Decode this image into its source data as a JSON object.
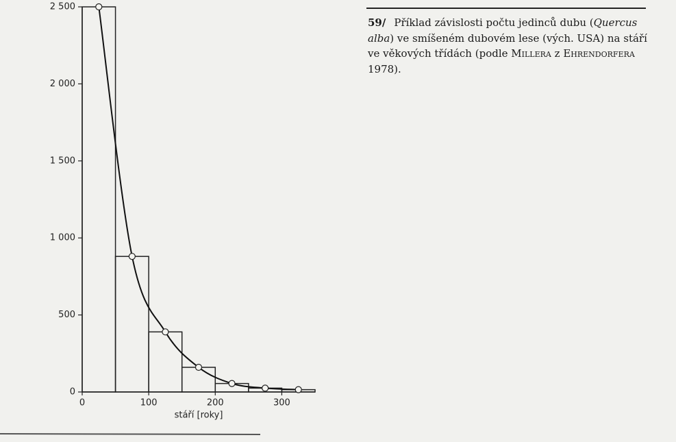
{
  "chart_data": {
    "type": "histogram",
    "bins": [
      0,
      50,
      100,
      150,
      200,
      250,
      300,
      350
    ],
    "counts": [
      2500,
      880,
      390,
      160,
      55,
      25,
      15
    ],
    "points": {
      "x": [
        25,
        75,
        125,
        175,
        225,
        275,
        325
      ],
      "values": [
        2500,
        880,
        390,
        160,
        55,
        25,
        15
      ]
    },
    "xlim": [
      0,
      350
    ],
    "ylim": [
      0,
      2500
    ],
    "xticks": [
      0,
      100,
      200,
      300
    ],
    "yticks": [
      0,
      500,
      {
        "value": 1000,
        "label": "1 000"
      },
      {
        "value": 1500,
        "label": "1 500"
      },
      {
        "value": 2000,
        "label": "2 000"
      },
      {
        "value": 2500,
        "label": "2 500"
      }
    ],
    "xlabel": "stáří [roky]",
    "caption": {
      "number": "59/",
      "parts": [
        "Příklad závislosti počtu jedinců dubu (",
        "Quercus alba",
        ") ve smíšeném dubovém lese (vých. USA) na stáří ve věkových třídách (podle ",
        "Millera",
        " z ",
        "Ehrendorfera",
        " 1978)."
      ]
    }
  }
}
